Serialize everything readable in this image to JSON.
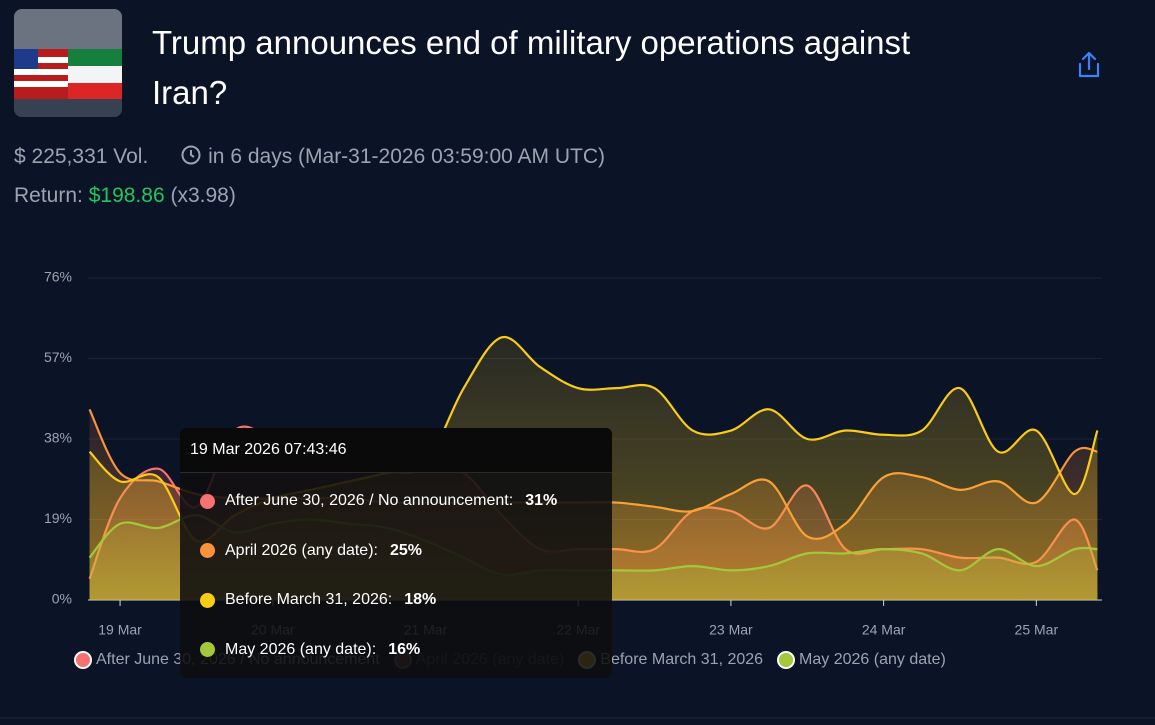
{
  "header": {
    "title": "Trump announces end of military operations against Iran?",
    "volume": "$ 225,331 Vol.",
    "countdown": "in 6 days (Mar-31-2026 03:59:00 AM UTC)",
    "return_label": "Return:",
    "return_value": "$198.86",
    "return_multiple": "(x3.98)"
  },
  "chart_data": {
    "type": "line",
    "x": [
      -0.2,
      0,
      0.25,
      0.5,
      0.75,
      1,
      1.25,
      1.5,
      1.75,
      2,
      2.25,
      2.5,
      2.75,
      3,
      3.25,
      3.5,
      3.75,
      4,
      4.25,
      4.5,
      4.75,
      5,
      5.25,
      5.5,
      5.75,
      6,
      6.25,
      6.4
    ],
    "xlim": [
      -0.21,
      6.43
    ],
    "xticks": [
      {
        "value": 0,
        "label": "19 Mar"
      },
      {
        "value": 1,
        "label": "20 Mar"
      },
      {
        "value": 2,
        "label": "21 Mar"
      },
      {
        "value": 3,
        "label": "22 Mar"
      },
      {
        "value": 4,
        "label": "23 Mar"
      },
      {
        "value": 5,
        "label": "24 Mar"
      },
      {
        "value": 6,
        "label": "25 Mar"
      }
    ],
    "ylim": [
      0,
      76
    ],
    "yticks": [
      {
        "value": 0,
        "label": "0%"
      },
      {
        "value": 19,
        "label": "19%"
      },
      {
        "value": 38,
        "label": "38%"
      },
      {
        "value": 57,
        "label": "57%"
      },
      {
        "value": 76,
        "label": "76%"
      }
    ],
    "grid": true,
    "series": [
      {
        "name": "After June 30, 2026 / No announcement",
        "color": "#f87171",
        "values": [
          5,
          24,
          31,
          22,
          40,
          38,
          35,
          33,
          32,
          32,
          30,
          20,
          12,
          12,
          12,
          12,
          21,
          21,
          17,
          27,
          12,
          12,
          12,
          10,
          10,
          9,
          19,
          7
        ]
      },
      {
        "name": "April 2026 (any date)",
        "color": "#fb923c",
        "values": [
          45,
          30,
          28,
          25,
          24,
          24,
          24,
          24,
          23,
          23,
          23,
          23,
          23,
          23,
          23,
          22,
          21,
          25,
          28,
          15,
          18,
          29,
          29,
          26,
          28,
          23,
          35,
          35
        ]
      },
      {
        "name": "Before March 31, 2026",
        "color": "#facc15",
        "values": [
          35,
          28,
          29,
          14,
          20,
          24,
          26,
          28,
          30,
          32,
          50,
          62,
          55,
          50,
          50,
          50,
          40,
          40,
          45,
          38,
          40,
          39,
          40,
          50,
          35,
          40,
          25,
          40
        ]
      },
      {
        "name": "May 2026 (any date)",
        "color": "#a3c93a",
        "values": [
          10,
          18,
          17,
          20,
          16,
          18,
          19,
          18,
          17,
          14,
          10,
          6,
          7,
          7,
          7,
          7,
          8,
          7,
          8,
          11,
          11,
          12,
          11,
          7,
          12,
          8,
          12,
          12
        ]
      }
    ]
  },
  "tooltip": {
    "title": "19 Mar 2026 07:43:46",
    "items": [
      {
        "name": "After June 30, 2026 / No announcement:",
        "value": "31%"
      },
      {
        "name": "April 2026 (any date):",
        "value": "25%"
      },
      {
        "name": "Before March 31, 2026:",
        "value": "18%"
      },
      {
        "name": "May 2026 (any date):",
        "value": "16%"
      }
    ]
  }
}
